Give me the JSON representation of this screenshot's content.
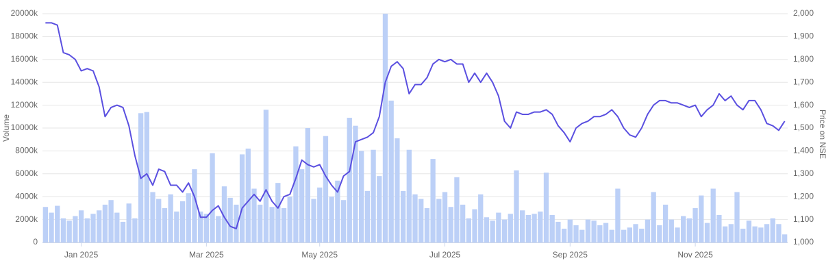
{
  "chart_data": {
    "type": "combo",
    "y_label": "Volume",
    "y2_label": "Price on NSE",
    "categories": [
      null,
      null,
      null,
      null,
      null,
      null,
      "Jan 2025",
      null,
      null,
      null,
      null,
      null,
      null,
      null,
      null,
      null,
      null,
      null,
      null,
      null,
      null,
      null,
      null,
      null,
      null,
      null,
      null,
      "Mar 2025",
      null,
      null,
      null,
      null,
      null,
      null,
      null,
      null,
      null,
      null,
      null,
      null,
      null,
      null,
      null,
      null,
      null,
      null,
      "May 2025",
      null,
      null,
      null,
      null,
      null,
      null,
      null,
      null,
      null,
      null,
      null,
      null,
      null,
      null,
      null,
      null,
      null,
      null,
      null,
      null,
      "Jul 2025",
      null,
      null,
      null,
      null,
      null,
      null,
      null,
      null,
      null,
      null,
      null,
      null,
      null,
      null,
      null,
      null,
      null,
      null,
      null,
      null,
      "Sep 2025",
      null,
      null,
      null,
      null,
      null,
      null,
      null,
      null,
      null,
      null,
      null,
      null,
      null,
      null,
      null,
      null,
      null,
      null,
      null,
      null,
      "Nov 2025",
      null,
      null,
      null,
      null,
      null,
      null,
      null,
      null,
      null,
      null,
      null,
      null,
      null,
      null,
      null
    ],
    "series": [
      {
        "kind": "bar",
        "color": "#bcd0f7",
        "values": [
          3100,
          2600,
          3200,
          2100,
          1900,
          2300,
          2800,
          2100,
          2500,
          2800,
          3300,
          3700,
          2600,
          1800,
          3400,
          2100,
          11300,
          11400,
          4400,
          3800,
          3000,
          4200,
          2700,
          3600,
          4300,
          6400,
          2700,
          2500,
          7800,
          2300,
          4900,
          3900,
          3300,
          7700,
          8200,
          4700,
          3300,
          11600,
          3100,
          5200,
          3000,
          4000,
          8400,
          6400,
          10000,
          3800,
          4800,
          9300,
          4000,
          5400,
          3700,
          10900,
          10200,
          8000,
          4500,
          8100,
          5800,
          20000,
          12400,
          9100,
          4500,
          8100,
          4200,
          3800,
          3000,
          7300,
          3800,
          4400,
          3100,
          5700,
          3300,
          2100,
          2900,
          4200,
          2200,
          1900,
          2600,
          2000,
          2500,
          6300,
          2800,
          2400,
          2500,
          2700,
          6100,
          2400,
          1800,
          1200,
          2000,
          1500,
          1100,
          2000,
          1900,
          1500,
          1700,
          1100,
          4700,
          1100,
          1300,
          1600,
          1200,
          2000,
          4400,
          1500,
          3300,
          2000,
          1300,
          2300,
          2100,
          3000,
          4100,
          1700,
          4700,
          2400,
          1400,
          1600,
          4400,
          1200,
          1900,
          1400,
          1300,
          1600,
          2100,
          1600,
          700
        ]
      },
      {
        "kind": "line",
        "axis": "y2",
        "color": "#5a4fe0",
        "values": [
          1960,
          1960,
          1950,
          1830,
          1820,
          1800,
          1750,
          1760,
          1750,
          1680,
          1550,
          1590,
          1600,
          1590,
          1510,
          1380,
          1280,
          1300,
          1250,
          1320,
          1310,
          1250,
          1250,
          1220,
          1260,
          1200,
          1110,
          1110,
          1140,
          1160,
          1110,
          1070,
          1060,
          1150,
          1180,
          1210,
          1180,
          1230,
          1180,
          1150,
          1200,
          1210,
          1280,
          1360,
          1340,
          1330,
          1340,
          1290,
          1250,
          1220,
          1290,
          1310,
          1440,
          1450,
          1460,
          1480,
          1550,
          1700,
          1770,
          1790,
          1760,
          1650,
          1690,
          1690,
          1720,
          1780,
          1800,
          1790,
          1800,
          1780,
          1780,
          1700,
          1740,
          1700,
          1740,
          1700,
          1640,
          1530,
          1500,
          1570,
          1560,
          1560,
          1570,
          1570,
          1580,
          1560,
          1510,
          1480,
          1440,
          1500,
          1520,
          1530,
          1550,
          1550,
          1560,
          1580,
          1550,
          1500,
          1470,
          1460,
          1500,
          1560,
          1600,
          1620,
          1620,
          1610,
          1610,
          1600,
          1590,
          1600,
          1550,
          1580,
          1600,
          1650,
          1620,
          1640,
          1600,
          1580,
          1620,
          1620,
          1580,
          1520,
          1510,
          1490,
          1530
        ]
      }
    ],
    "ylim": [
      0,
      20000
    ],
    "yticks": [
      0,
      {
        "value": 2000,
        "label": "2000k"
      },
      {
        "value": 4000,
        "label": "4000k"
      },
      {
        "value": 6000,
        "label": "6000k"
      },
      {
        "value": 8000,
        "label": "8000k"
      },
      {
        "value": 10000,
        "label": "10000k"
      },
      {
        "value": 12000,
        "label": "12000k"
      },
      {
        "value": 14000,
        "label": "14000k"
      },
      {
        "value": 16000,
        "label": "16000k"
      },
      {
        "value": 18000,
        "label": "18000k"
      },
      {
        "value": 20000,
        "label": "20000k"
      }
    ],
    "y2lim": [
      1000,
      2000
    ],
    "y2ticks": [
      {
        "value": 1000,
        "label": "1,000"
      },
      {
        "value": 1100,
        "label": "1,100"
      },
      {
        "value": 1200,
        "label": "1,200"
      },
      {
        "value": 1300,
        "label": "1,300"
      },
      {
        "value": 1400,
        "label": "1,400"
      },
      {
        "value": 1500,
        "label": "1,500"
      },
      {
        "value": 1600,
        "label": "1,600"
      },
      {
        "value": 1700,
        "label": "1,700"
      },
      {
        "value": 1800,
        "label": "1,800"
      },
      {
        "value": 1900,
        "label": "1,900"
      },
      {
        "value": 2000,
        "label": "2,000"
      }
    ],
    "grid": true
  }
}
